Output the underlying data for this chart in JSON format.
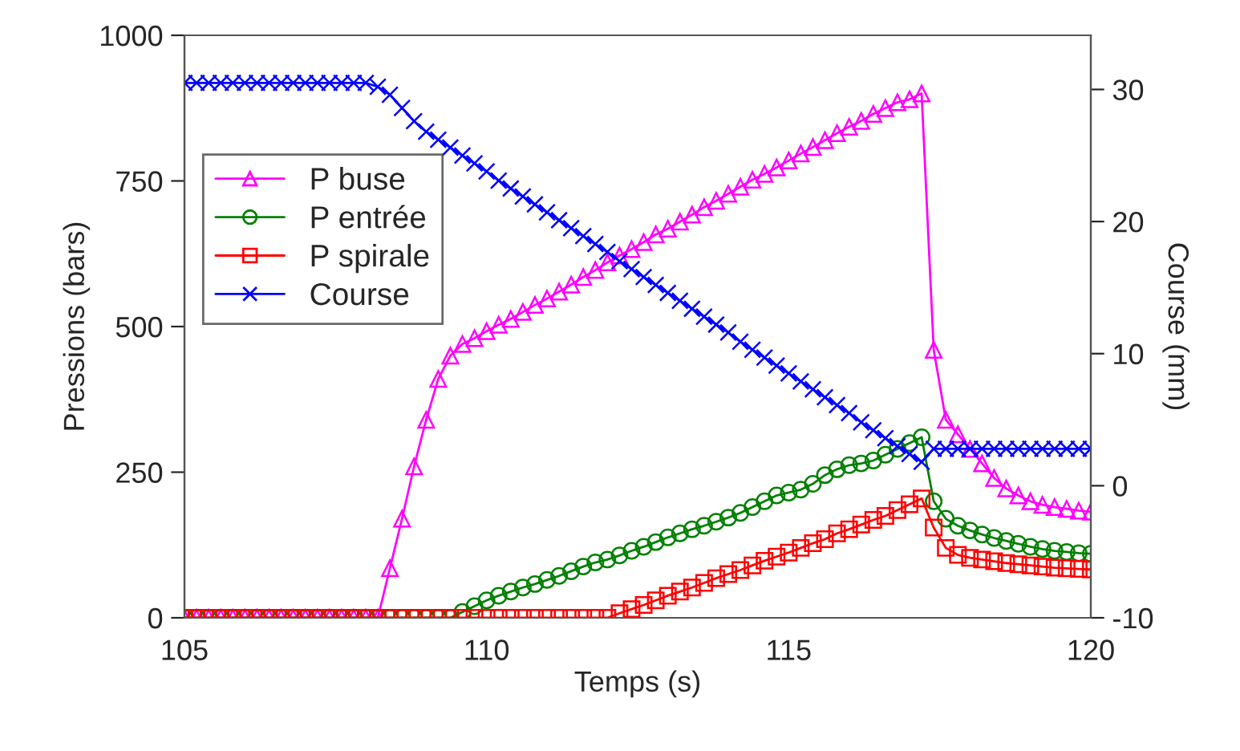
{
  "chart_data": {
    "type": "line",
    "xlabel": "Temps (s)",
    "ylabel": "Pressions (bars)",
    "y2label": "Course (mm)",
    "x": [
      105.0,
      105.2,
      105.4,
      105.6,
      105.8,
      106.0,
      106.2,
      106.4,
      106.6,
      106.8,
      107.0,
      107.2,
      107.4,
      107.6,
      107.8,
      108.0,
      108.2,
      108.4,
      108.6,
      108.8,
      109.0,
      109.2,
      109.4,
      109.6,
      109.8,
      110.0,
      110.2,
      110.4,
      110.6,
      110.8,
      111.0,
      111.2,
      111.4,
      111.6,
      111.8,
      112.0,
      112.2,
      112.4,
      112.6,
      112.8,
      113.0,
      113.2,
      113.4,
      113.6,
      113.8,
      114.0,
      114.2,
      114.4,
      114.6,
      114.8,
      115.0,
      115.2,
      115.4,
      115.6,
      115.8,
      116.0,
      116.2,
      116.4,
      116.6,
      116.8,
      117.0,
      117.2,
      117.4,
      117.6,
      117.8,
      118.0,
      118.2,
      118.4,
      118.6,
      118.8,
      119.0,
      119.2,
      119.4,
      119.6,
      119.8,
      120.0
    ],
    "series": [
      {
        "name": "P buse",
        "color": "#ff00ff",
        "marker": "triangle",
        "values": [
          0,
          0,
          0,
          0,
          0,
          0,
          0,
          0,
          0,
          0,
          0,
          0,
          0,
          0,
          0,
          0,
          0,
          85,
          170,
          260,
          340,
          410,
          450,
          470,
          480,
          492,
          503,
          513,
          525,
          537,
          548,
          560,
          572,
          585,
          597,
          610,
          622,
          633,
          645,
          658,
          668,
          680,
          692,
          705,
          716,
          728,
          740,
          752,
          762,
          773,
          785,
          797,
          808,
          820,
          832,
          843,
          853,
          865,
          875,
          885,
          890,
          900,
          460,
          340,
          315,
          290,
          265,
          240,
          222,
          210,
          200,
          194,
          190,
          187,
          184,
          182
        ]
      },
      {
        "name": "P entrée",
        "color": "#008000",
        "marker": "circle",
        "values": [
          0,
          0,
          0,
          0,
          0,
          0,
          0,
          0,
          0,
          0,
          0,
          0,
          0,
          0,
          0,
          0,
          0,
          0,
          0,
          0,
          0,
          0,
          0,
          10,
          20,
          30,
          38,
          45,
          52,
          58,
          65,
          72,
          80,
          88,
          95,
          100,
          107,
          115,
          122,
          130,
          138,
          145,
          152,
          158,
          165,
          172,
          180,
          190,
          200,
          210,
          215,
          220,
          230,
          245,
          255,
          262,
          265,
          270,
          280,
          290,
          300,
          310,
          200,
          170,
          158,
          150,
          143,
          137,
          132,
          127,
          122,
          118,
          115,
          113,
          111,
          110
        ]
      },
      {
        "name": "P spirale",
        "color": "#ff0000",
        "marker": "square",
        "values": [
          0,
          0,
          0,
          0,
          0,
          0,
          0,
          0,
          0,
          0,
          0,
          0,
          0,
          0,
          0,
          0,
          0,
          0,
          0,
          0,
          0,
          0,
          0,
          0,
          0,
          0,
          0,
          0,
          0,
          0,
          0,
          0,
          0,
          0,
          0,
          0,
          8,
          15,
          22,
          30,
          38,
          45,
          52,
          60,
          68,
          75,
          82,
          90,
          98,
          105,
          112,
          120,
          128,
          135,
          145,
          152,
          160,
          168,
          175,
          185,
          195,
          205,
          155,
          120,
          108,
          103,
          100,
          97,
          94,
          92,
          90,
          88,
          86,
          85,
          84,
          83
        ]
      },
      {
        "name": "Course",
        "color": "#0000ff",
        "marker": "cross",
        "axis": "y2",
        "values": [
          30.5,
          30.5,
          30.5,
          30.5,
          30.5,
          30.5,
          30.5,
          30.5,
          30.5,
          30.5,
          30.5,
          30.5,
          30.5,
          30.5,
          30.5,
          30.5,
          30.2,
          29.6,
          28.6,
          27.6,
          26.8,
          26.2,
          25.6,
          25.0,
          24.4,
          23.8,
          23.1,
          22.5,
          21.9,
          21.3,
          20.7,
          20.1,
          19.5,
          18.9,
          18.3,
          17.7,
          17.0,
          16.4,
          15.8,
          15.2,
          14.6,
          14.0,
          13.4,
          12.8,
          12.2,
          11.6,
          10.9,
          10.3,
          9.7,
          9.1,
          8.5,
          7.9,
          7.3,
          6.7,
          6.1,
          5.5,
          4.8,
          4.2,
          3.6,
          3.0,
          2.4,
          1.8,
          2.8,
          2.8,
          2.8,
          2.8,
          2.8,
          2.8,
          2.8,
          2.8,
          2.8,
          2.8,
          2.8,
          2.8,
          2.8,
          2.8
        ]
      }
    ],
    "xlim": [
      105,
      120
    ],
    "xticks": [
      105,
      110,
      115,
      120
    ],
    "ylim": [
      0,
      1000
    ],
    "yticks": [
      0,
      250,
      500,
      750,
      1000
    ],
    "y2lim": [
      -10,
      34.1
    ],
    "y2ticks": [
      -10,
      0,
      10,
      20,
      30
    ],
    "grid": false,
    "legend": "left"
  }
}
